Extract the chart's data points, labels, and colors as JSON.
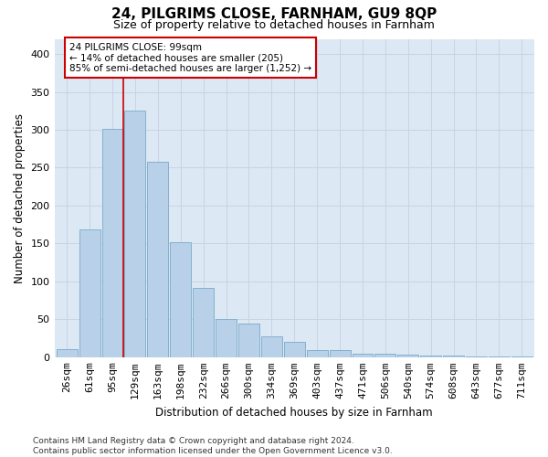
{
  "title": "24, PILGRIMS CLOSE, FARNHAM, GU9 8QP",
  "subtitle": "Size of property relative to detached houses in Farnham",
  "xlabel": "Distribution of detached houses by size in Farnham",
  "ylabel": "Number of detached properties",
  "categories": [
    "26sqm",
    "61sqm",
    "95sqm",
    "129sqm",
    "163sqm",
    "198sqm",
    "232sqm",
    "266sqm",
    "300sqm",
    "334sqm",
    "369sqm",
    "403sqm",
    "437sqm",
    "471sqm",
    "506sqm",
    "540sqm",
    "574sqm",
    "608sqm",
    "643sqm",
    "677sqm",
    "711sqm"
  ],
  "values": [
    11,
    168,
    301,
    325,
    258,
    152,
    91,
    50,
    44,
    27,
    20,
    10,
    9,
    5,
    5,
    3,
    2,
    2,
    1,
    1,
    1
  ],
  "bar_color": "#b8d0e8",
  "bar_edge_color": "#7aaac8",
  "vline_x": 2.5,
  "vline_color": "#cc0000",
  "annotation_text": "24 PILGRIMS CLOSE: 99sqm\n← 14% of detached houses are smaller (205)\n85% of semi-detached houses are larger (1,252) →",
  "annotation_box_color": "#ffffff",
  "annotation_box_edge": "#cc0000",
  "ylim": [
    0,
    420
  ],
  "yticks": [
    0,
    50,
    100,
    150,
    200,
    250,
    300,
    350,
    400
  ],
  "grid_color": "#c8d4e4",
  "bg_color": "#dce8f4",
  "footer": "Contains HM Land Registry data © Crown copyright and database right 2024.\nContains public sector information licensed under the Open Government Licence v3.0.",
  "title_fontsize": 11,
  "subtitle_fontsize": 9,
  "xlabel_fontsize": 8.5,
  "ylabel_fontsize": 8.5,
  "tick_fontsize": 8,
  "footer_fontsize": 6.5,
  "annot_fontsize": 7.5
}
